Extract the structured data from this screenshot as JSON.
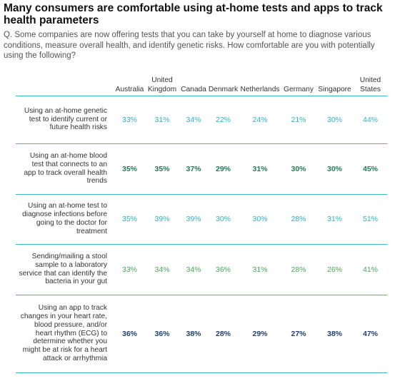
{
  "header": {
    "title": "Many consumers are comfortable using at-home tests and apps to track health parameters",
    "question": "Q. Some companies are now offering tests that you can take by yourself at home to diagnose various conditions, measure overall health, and identify genetic risks. How comfortable are you with potentially using the following?"
  },
  "colors": {
    "light_teal": "#2fb2c4",
    "dark_green": "#1f7a55",
    "navy": "#1f3f6e",
    "rule": "#3cb7c2"
  },
  "chart_data": {
    "type": "table",
    "title": "Many consumers are comfortable using at-home tests and apps to track health parameters",
    "columns": [
      "Australia",
      "United Kingdom",
      "Canada",
      "Denmark",
      "Netherlands",
      "Germany",
      "Singapore",
      "United States"
    ],
    "rows": [
      {
        "label": "Using an at-home genetic test to identify current or future health risks",
        "values": [
          "33%",
          "31%",
          "34%",
          "22%",
          "24%",
          "21%",
          "30%",
          "44%"
        ],
        "style": "light-teal"
      },
      {
        "label": "Using an at-home blood test that connects to an app to track overall health trends",
        "values": [
          "35%",
          "35%",
          "37%",
          "29%",
          "31%",
          "30%",
          "30%",
          "45%"
        ],
        "style": "dark-green"
      },
      {
        "label": "Using an at-home test to diagnose infections before going to the doctor for treatment",
        "values": [
          "35%",
          "39%",
          "39%",
          "30%",
          "30%",
          "28%",
          "31%",
          "51%"
        ],
        "style": "light-teal"
      },
      {
        "label": "Sending/mailing a stool sample to a laboratory service that can identify the bacteria in your gut",
        "values": [
          "33%",
          "34%",
          "34%",
          "36%",
          "31%",
          "28%",
          "26%",
          "41%"
        ],
        "style": "green"
      },
      {
        "label": "Using an app to track changes in your heart rate, blood pressure, and/or heart rhythm (ECG) to determine whether you might be at risk for a heart attack or arrhythmia",
        "values": [
          "36%",
          "36%",
          "38%",
          "28%",
          "29%",
          "27%",
          "38%",
          "47%"
        ],
        "style": "navy"
      }
    ]
  }
}
